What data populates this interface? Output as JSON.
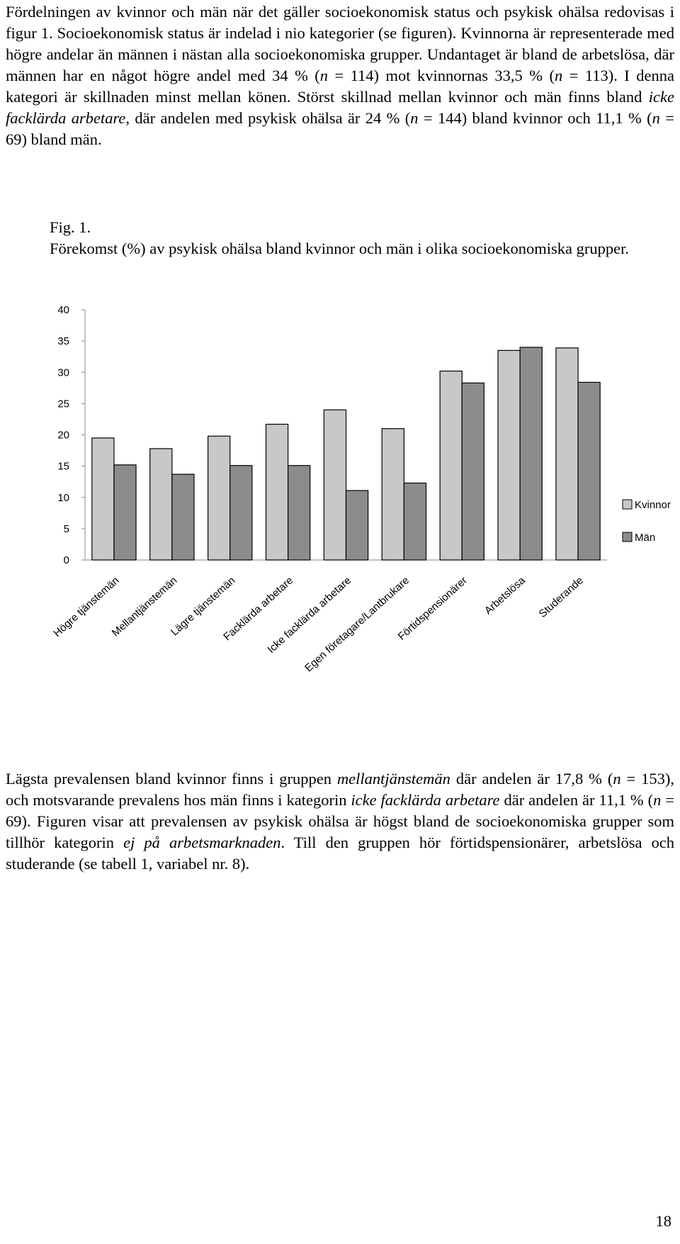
{
  "paragraphs": [
    {
      "runs": [
        {
          "text": "Fördelningen av kvinnor och män när det gäller socioekonomisk status och psykisk ohälsa redovisas i figur 1. Socioekonomisk status är indelad i nio kategorier (se figuren). Kvinnorna är representerade med högre andelar än männen i nästan alla socioekonomiska grupper. Undantaget är bland de arbetslösa, där männen har en något högre andel med 34 % (",
          "italic": false
        },
        {
          "text": "n",
          "italic": true
        },
        {
          "text": " = 114) mot kvinnornas 33,5 % (",
          "italic": false
        },
        {
          "text": "n",
          "italic": true
        },
        {
          "text": " = 113). I denna kategori är skillnaden minst mellan könen. Störst skillnad mellan kvinnor och män finns bland ",
          "italic": false
        },
        {
          "text": "icke facklärda arbetare",
          "italic": true
        },
        {
          "text": ", där andelen med psykisk ohälsa är 24 % (",
          "italic": false
        },
        {
          "text": "n",
          "italic": true
        },
        {
          "text": " = 144) bland kvinnor och 11,1 % (",
          "italic": false
        },
        {
          "text": "n",
          "italic": true
        },
        {
          "text": " = 69) bland män.",
          "italic": false
        }
      ]
    },
    {
      "runs": [
        {
          "text": "Lägsta prevalensen bland kvinnor finns i gruppen ",
          "italic": false
        },
        {
          "text": "mellantjänstemän",
          "italic": true
        },
        {
          "text": " där andelen är 17,8 % (",
          "italic": false
        },
        {
          "text": "n",
          "italic": true
        },
        {
          "text": " = 153), och motsvarande prevalens hos män finns i kategorin ",
          "italic": false
        },
        {
          "text": "icke facklärda arbetare",
          "italic": true
        },
        {
          "text": " där andelen är 11,1 % (",
          "italic": false
        },
        {
          "text": "n",
          "italic": true
        },
        {
          "text": " = 69). Figuren visar att prevalensen av psykisk ohälsa är högst bland de socioekonomiska grupper som tillhör kategorin ",
          "italic": false
        },
        {
          "text": "ej på arbetsmarknaden",
          "italic": true
        },
        {
          "text": ". Till den gruppen hör förtidspensionärer, arbetslösa och studerande (se tabell 1, variabel nr. 8).",
          "italic": false
        }
      ]
    }
  ],
  "figure": {
    "label": "Fig. 1.",
    "caption": "Förekomst (%) av psykisk ohälsa bland kvinnor och män i olika socioekonomiska grupper."
  },
  "chart_data": {
    "type": "bar",
    "categories": [
      "Högre tjänstemän",
      "Mellantjänstemän",
      "Lägre tjänstemän",
      "Facklärda arbetare",
      "Icke facklärda arbetare",
      "Egen företagare/Lantbrukare",
      "Förtidspensionärer",
      "Arbetslösa",
      "Studerande"
    ],
    "series": [
      {
        "name": "Kvinnor",
        "color": "#c8c8c8",
        "values": [
          19.5,
          17.8,
          19.8,
          21.7,
          24,
          21.0,
          30.2,
          33.5,
          33.9
        ]
      },
      {
        "name": "Män",
        "color": "#8c8c8c",
        "values": [
          15.2,
          13.7,
          15.1,
          15.1,
          11.1,
          12.3,
          28.3,
          34,
          28.4
        ]
      }
    ],
    "ylim": [
      0,
      40
    ],
    "yticks": [
      0,
      5,
      10,
      15,
      20,
      25,
      30,
      35,
      40
    ],
    "grid": false,
    "legend": "right"
  },
  "page_number": "18"
}
